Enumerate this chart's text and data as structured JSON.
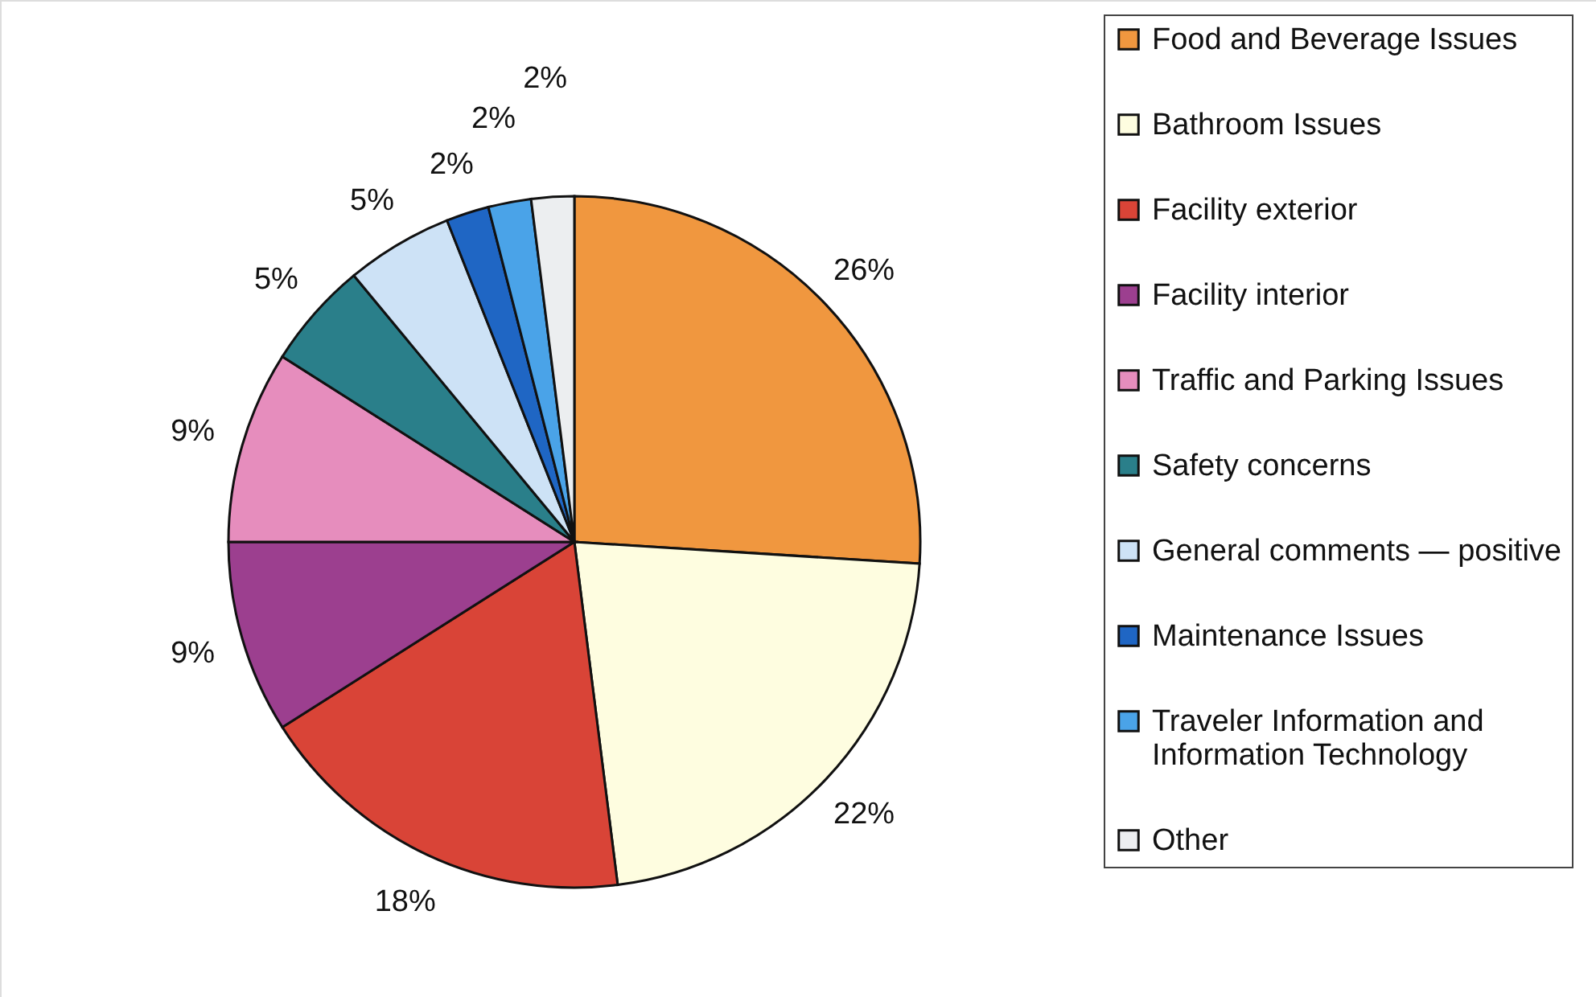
{
  "chart_data": {
    "type": "pie",
    "categories": [
      "Food and Beverage Issues",
      "Bathroom Issues",
      "Facility exterior",
      "Facility interior",
      "Traffic and Parking Issues",
      "Safety concerns",
      "General comments — positive",
      "Maintenance Issues",
      "Traveler Information and Information Technology",
      "Other"
    ],
    "values": [
      26,
      22,
      18,
      9,
      9,
      5,
      5,
      2,
      2,
      2
    ],
    "colors": [
      "#f0973f",
      "#fefde0",
      "#d94437",
      "#9c3f8f",
      "#e68dbd",
      "#2a7f8a",
      "#cde2f6",
      "#1f66c4",
      "#4aa3e8",
      "#eceef0"
    ],
    "value_labels": [
      "26%",
      "22%",
      "18%",
      "9%",
      "9%",
      "5%",
      "5%",
      "2%",
      "2%",
      "2%"
    ],
    "legend": "right"
  }
}
